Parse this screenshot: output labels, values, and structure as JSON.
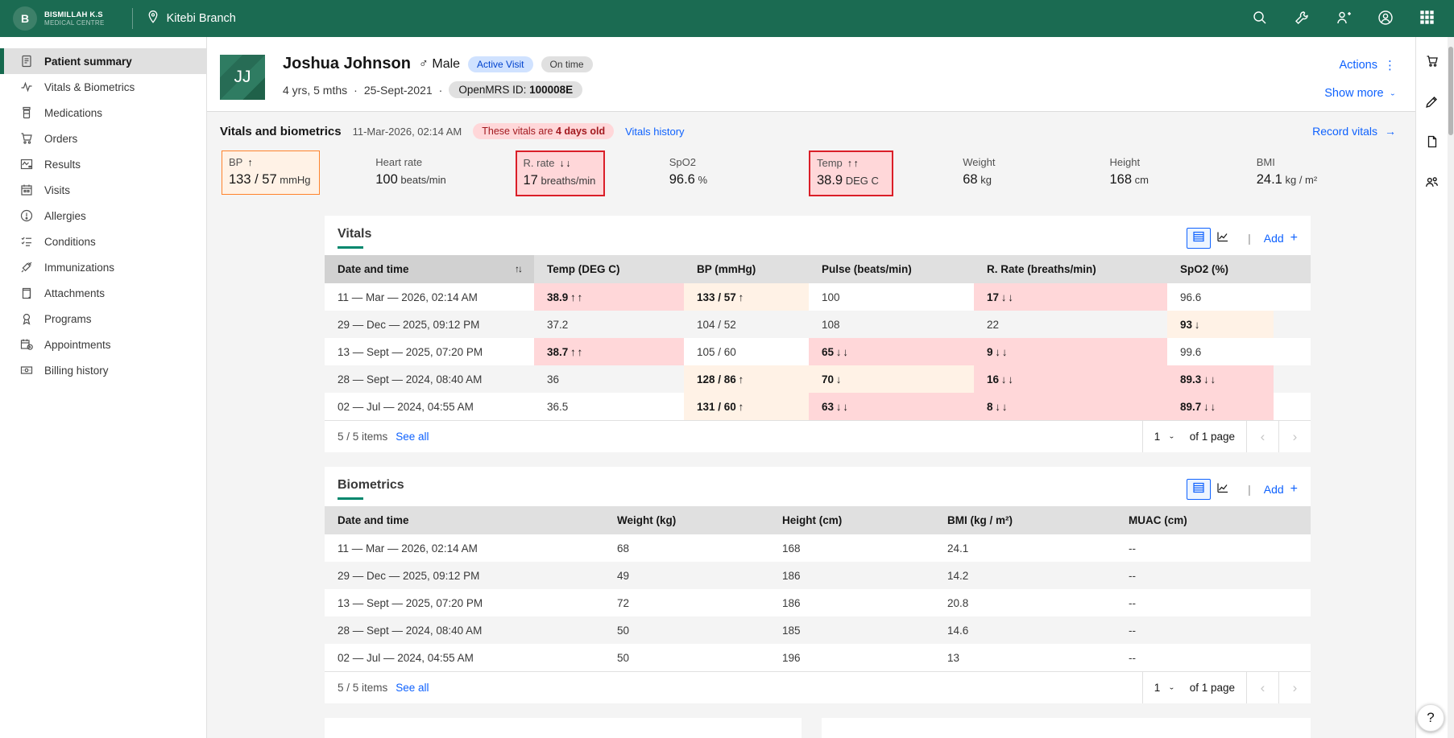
{
  "colors": {
    "brand_green": "#1b6b52",
    "accent_teal": "#00876d",
    "link_blue": "#0f62fe",
    "critical_red_bg": "#ffd7d9",
    "critical_red_border": "#da1e28",
    "warning_orange_bg": "#fff2e6",
    "warning_orange_border": "#ff832b",
    "tag_red_text": "#a2191f",
    "active_visit_bg": "#d0e2ff",
    "active_visit_text": "#0043ce"
  },
  "header": {
    "logo_letter": "B",
    "brand_line1": "BISMILLAH K.S",
    "brand_line2": "MEDICAL CENTRE",
    "location": "Kitebi Branch",
    "icons": [
      "location-pin-icon",
      "search-icon",
      "tools-wrench-icon",
      "add-user-icon",
      "account-icon",
      "app-switcher-icon"
    ]
  },
  "side_nav": {
    "items": [
      {
        "label": "Patient summary",
        "icon": "report",
        "active": true
      },
      {
        "label": "Vitals & Biometrics",
        "icon": "activity",
        "active": false
      },
      {
        "label": "Medications",
        "icon": "medication",
        "active": false
      },
      {
        "label": "Orders",
        "icon": "cart",
        "active": false
      },
      {
        "label": "Results",
        "icon": "results-chart",
        "active": false
      },
      {
        "label": "Visits",
        "icon": "calendar",
        "active": false
      },
      {
        "label": "Allergies",
        "icon": "warning",
        "active": false
      },
      {
        "label": "Conditions",
        "icon": "checklist",
        "active": false
      },
      {
        "label": "Immunizations",
        "icon": "syringe",
        "active": false
      },
      {
        "label": "Attachments",
        "icon": "attachment",
        "active": false
      },
      {
        "label": "Programs",
        "icon": "program",
        "active": false
      },
      {
        "label": "Appointments",
        "icon": "event-schedule",
        "active": false
      },
      {
        "label": "Billing history",
        "icon": "billing",
        "active": false
      }
    ]
  },
  "right_rail": {
    "icons": [
      "order-basket-icon",
      "edit-pencil-icon",
      "clinical-forms-icon",
      "care-team-icon"
    ],
    "help_glyph": "?"
  },
  "patient_banner": {
    "initials": "JJ",
    "name": "Joshua Johnson",
    "sex_symbol": "♂",
    "sex": "Male",
    "visit_tag": "Active Visit",
    "status_tag": "On time",
    "age": "4 yrs, 5 mths",
    "dot": "·",
    "birthdate": "25-Sept-2021",
    "id_label": "OpenMRS ID:",
    "id_value": "100008E",
    "actions_label": "Actions",
    "kebab_glyph": "⋮",
    "show_more_label": "Show more",
    "chevron_glyph": "⌄"
  },
  "vitals_strip": {
    "title": "Vitals and biometrics",
    "datetime": "11-Mar-2026, 02:14 AM",
    "overdue_prefix": "These vitals are ",
    "overdue_bold": "4 days old",
    "history_link": "Vitals history",
    "record_link": "Record vitals",
    "arrow_glyph": "→",
    "tiles": [
      {
        "label": "BP",
        "arrows": "↑",
        "value": "133 / 57",
        "unit": "mmHg",
        "flag": "warning"
      },
      {
        "label": "Heart rate",
        "arrows": "",
        "value": "100",
        "unit": "beats/min",
        "flag": "none"
      },
      {
        "label": "R. rate",
        "arrows": "↓ ↓",
        "value": "17",
        "unit": "breaths/min",
        "flag": "critical"
      },
      {
        "label": "SpO2",
        "arrows": "",
        "value": "96.6",
        "unit": "%",
        "flag": "none"
      },
      {
        "label": "Temp",
        "arrows": "↑ ↑",
        "value": "38.9",
        "unit": "DEG C",
        "flag": "critical"
      },
      {
        "label": "Weight",
        "arrows": "",
        "value": "68",
        "unit": "kg",
        "flag": "none"
      },
      {
        "label": "Height",
        "arrows": "",
        "value": "168",
        "unit": "cm",
        "flag": "none"
      },
      {
        "label": "BMI",
        "arrows": "",
        "value": "24.1",
        "unit": "kg / m²",
        "flag": "none"
      }
    ]
  },
  "vitals_table": {
    "title": "Vitals",
    "add_label": "Add",
    "plus_glyph": "+",
    "divider_glyph": "|",
    "sort_glyph": "↑↓",
    "columns": [
      "Date and time",
      "Temp (DEG C)",
      "BP (mmHg)",
      "Pulse (beats/min)",
      "R. Rate (breaths/min)",
      "SpO2 (%)"
    ],
    "rows": [
      [
        {
          "t": "11 — Mar — 2026, 02:14 AM"
        },
        {
          "t": "38.9",
          "a": "↑ ↑",
          "f": "critical"
        },
        {
          "t": "133 / 57",
          "a": "↑",
          "f": "warning"
        },
        {
          "t": "100"
        },
        {
          "t": "17",
          "a": "↓ ↓",
          "f": "critical"
        },
        {
          "t": "96.6"
        }
      ],
      [
        {
          "t": "29 — Dec — 2025, 09:12 PM"
        },
        {
          "t": "37.2"
        },
        {
          "t": "104 / 52"
        },
        {
          "t": "108"
        },
        {
          "t": "22"
        },
        {
          "t": "93",
          "a": "↓",
          "f": "warning"
        }
      ],
      [
        {
          "t": "13 — Sept — 2025, 07:20 PM"
        },
        {
          "t": "38.7",
          "a": "↑ ↑",
          "f": "critical"
        },
        {
          "t": "105 / 60"
        },
        {
          "t": "65",
          "a": "↓ ↓",
          "f": "critical"
        },
        {
          "t": "9",
          "a": "↓ ↓",
          "f": "critical"
        },
        {
          "t": "99.6"
        }
      ],
      [
        {
          "t": "28 — Sept — 2024, 08:40 AM"
        },
        {
          "t": "36"
        },
        {
          "t": "128 / 86",
          "a": "↑",
          "f": "warning"
        },
        {
          "t": "70",
          "a": "↓",
          "f": "warning"
        },
        {
          "t": "16",
          "a": "↓ ↓",
          "f": "critical"
        },
        {
          "t": "89.3",
          "a": "↓ ↓",
          "f": "critical"
        }
      ],
      [
        {
          "t": "02 — Jul — 2024, 04:55 AM"
        },
        {
          "t": "36.5"
        },
        {
          "t": "131 / 60",
          "a": "↑",
          "f": "warning"
        },
        {
          "t": "63",
          "a": "↓ ↓",
          "f": "critical"
        },
        {
          "t": "8",
          "a": "↓ ↓",
          "f": "critical"
        },
        {
          "t": "89.7",
          "a": "↓ ↓",
          "f": "critical"
        }
      ]
    ],
    "pagination": {
      "items": "5 / 5 items",
      "see_all": "See all",
      "page": "1",
      "of": "of 1 page",
      "prev_glyph": "‹",
      "next_glyph": "›"
    }
  },
  "biometrics_table": {
    "title": "Biometrics",
    "add_label": "Add",
    "plus_glyph": "+",
    "divider_glyph": "|",
    "columns": [
      "Date and time",
      "Weight (kg)",
      "Height (cm)",
      "BMI (kg / m²)",
      "MUAC (cm)"
    ],
    "rows": [
      [
        {
          "t": "11 — Mar — 2026, 02:14 AM"
        },
        {
          "t": "68"
        },
        {
          "t": "168"
        },
        {
          "t": "24.1"
        },
        {
          "t": "--"
        }
      ],
      [
        {
          "t": "29 — Dec — 2025, 09:12 PM"
        },
        {
          "t": "49"
        },
        {
          "t": "186"
        },
        {
          "t": "14.2"
        },
        {
          "t": "--"
        }
      ],
      [
        {
          "t": "13 — Sept — 2025, 07:20 PM"
        },
        {
          "t": "72"
        },
        {
          "t": "186"
        },
        {
          "t": "20.8"
        },
        {
          "t": "--"
        }
      ],
      [
        {
          "t": "28 — Sept — 2024, 08:40 AM"
        },
        {
          "t": "50"
        },
        {
          "t": "185"
        },
        {
          "t": "14.6"
        },
        {
          "t": "--"
        }
      ],
      [
        {
          "t": "02 — Jul — 2024, 04:55 AM"
        },
        {
          "t": "50"
        },
        {
          "t": "196"
        },
        {
          "t": "13"
        },
        {
          "t": "--"
        }
      ]
    ],
    "pagination": {
      "items": "5 / 5 items",
      "see_all": "See all",
      "page": "1",
      "of": "of 1 page",
      "prev_glyph": "‹",
      "next_glyph": "›"
    }
  }
}
